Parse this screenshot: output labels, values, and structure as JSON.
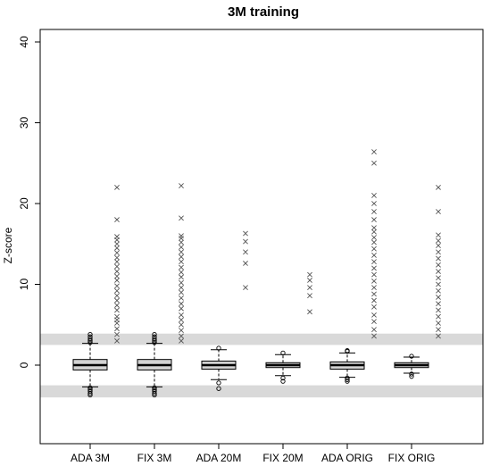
{
  "chart_data": {
    "type": "box",
    "title": "3M training",
    "xlabel": "",
    "ylabel": "Z-score",
    "ylim": [
      -10,
      42
    ],
    "yticks": [
      0,
      10,
      20,
      30,
      40
    ],
    "grid": false,
    "legend": "none",
    "categories": [
      "ADA 3M",
      "FIX 3M",
      "ADA 20M",
      "FIX 20M",
      "ADA ORIG",
      "FIX ORIG"
    ],
    "bands": [
      {
        "from": 2.5,
        "to": 3.9
      },
      {
        "from": -4.0,
        "to": -2.5
      }
    ],
    "colors": {
      "box_fill": "#d3d3d3",
      "band_fill": "#d9d9d9",
      "marker": "#555555"
    },
    "boxes": [
      {
        "q1": -0.6,
        "median": 0.0,
        "q3": 0.7,
        "whisker_low": -2.7,
        "whisker_high": 2.7,
        "outliers_circle": [
          2.8,
          3.0,
          3.2,
          3.5,
          3.8,
          -2.8,
          -3.0,
          -3.2,
          -3.5,
          -3.7
        ],
        "outliers_x": [
          3.0,
          3.8,
          4.5,
          5.2,
          5.6,
          6.0,
          6.8,
          7.4,
          8.0,
          8.6,
          9.2,
          9.8,
          10.5,
          11.0,
          11.6,
          12.2,
          12.8,
          13.3,
          13.9,
          14.5,
          15.0,
          15.5,
          15.9,
          18.0,
          22.0
        ]
      },
      {
        "q1": -0.6,
        "median": 0.0,
        "q3": 0.7,
        "whisker_low": -2.7,
        "whisker_high": 2.7,
        "outliers_circle": [
          2.8,
          3.0,
          3.2,
          3.5,
          3.8,
          -2.8,
          -3.0,
          -3.2,
          -3.5,
          -3.7
        ],
        "outliers_x": [
          3.0,
          3.6,
          4.3,
          5.0,
          5.6,
          6.2,
          7.0,
          7.6,
          8.3,
          9.0,
          9.6,
          10.2,
          10.9,
          11.5,
          12.1,
          12.8,
          13.4,
          14.0,
          14.6,
          15.2,
          15.7,
          16.0,
          18.2,
          22.2
        ]
      },
      {
        "q1": -0.5,
        "median": 0.0,
        "q3": 0.5,
        "whisker_low": -1.8,
        "whisker_high": 1.9,
        "outliers_circle": [
          2.1,
          -2.2,
          -2.9
        ],
        "outliers_x": [
          9.6,
          12.6,
          14.0,
          15.3,
          16.3
        ]
      },
      {
        "q1": -0.3,
        "median": 0.0,
        "q3": 0.3,
        "whisker_low": -1.3,
        "whisker_high": 1.3,
        "outliers_circle": [
          1.5,
          -1.6,
          -2.0
        ],
        "outliers_x": [
          6.6,
          8.6,
          9.6,
          10.5,
          11.2
        ]
      },
      {
        "q1": -0.5,
        "median": 0.0,
        "q3": 0.4,
        "whisker_low": -1.5,
        "whisker_high": 1.5,
        "outliers_circle": [
          1.7,
          1.8,
          -1.6,
          -1.8,
          -2.0
        ],
        "outliers_x": [
          3.6,
          4.4,
          5.4,
          6.2,
          7.2,
          8.0,
          8.8,
          9.6,
          10.4,
          11.2,
          12.0,
          12.8,
          13.6,
          14.4,
          15.2,
          15.8,
          16.5,
          17.0,
          18.0,
          19.0,
          20.0,
          21.0,
          25.0,
          26.4
        ]
      },
      {
        "q1": -0.3,
        "median": 0.0,
        "q3": 0.3,
        "whisker_low": -1.0,
        "whisker_high": 1.0,
        "outliers_circle": [
          1.1,
          -1.1,
          -1.4
        ],
        "outliers_x": [
          3.6,
          4.4,
          5.2,
          6.0,
          6.8,
          7.6,
          8.4,
          9.2,
          10.0,
          10.8,
          11.6,
          12.4,
          13.2,
          14.0,
          14.8,
          15.4,
          16.1,
          19.0,
          22.0
        ]
      }
    ]
  }
}
